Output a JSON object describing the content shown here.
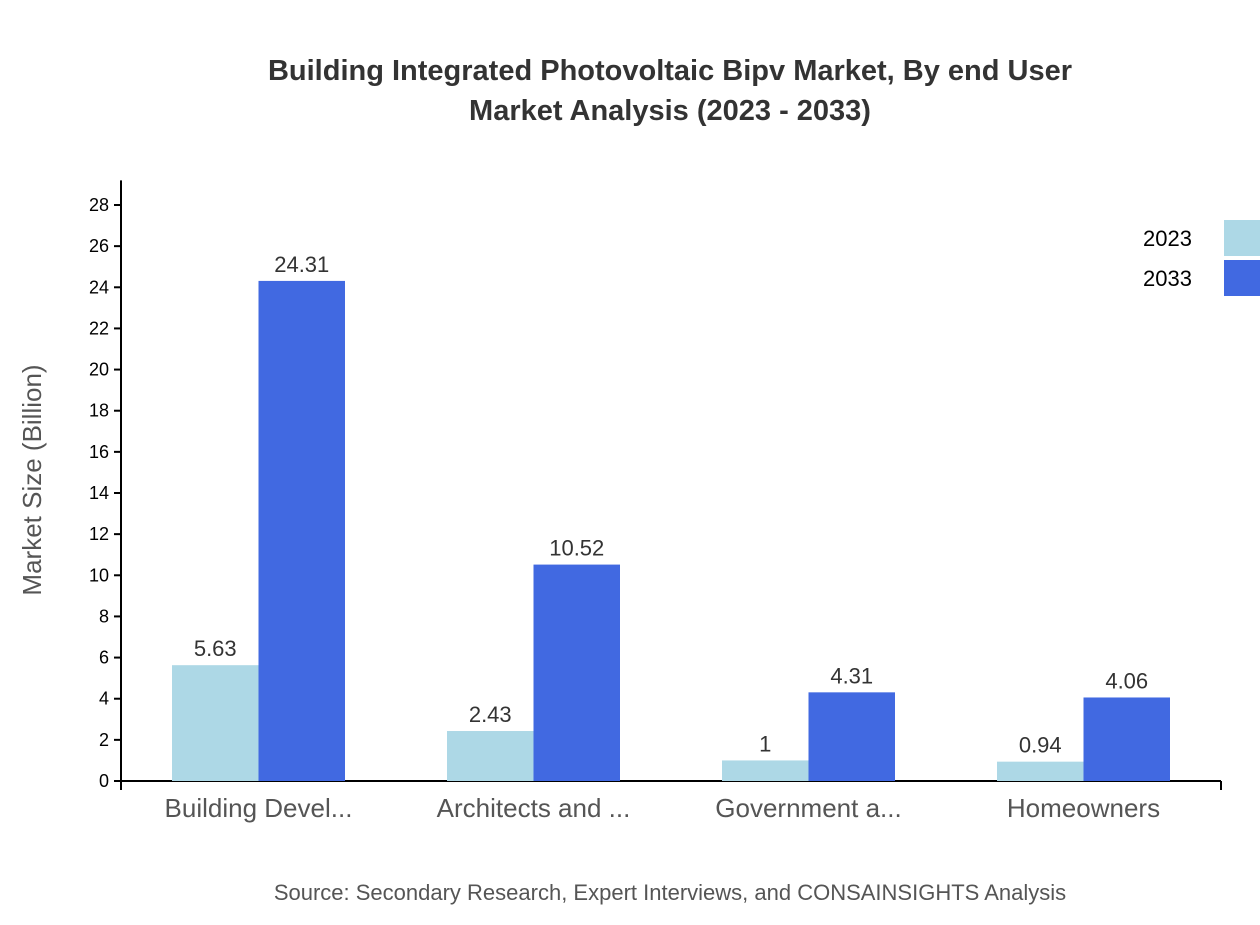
{
  "chart_data": {
    "type": "bar",
    "title": [
      "Building Integrated Photovoltaic Bipv Market, By end User",
      "Market Analysis (2023 - 2033)"
    ],
    "ylabel": "Market Size (Billion)",
    "xlabel": "",
    "categories": [
      "Building Devel...",
      "Architects and ...",
      "Government a...",
      "Homeowners"
    ],
    "series": [
      {
        "name": "2023",
        "color": "#add8e6",
        "values": [
          5.63,
          2.43,
          1,
          0.94
        ]
      },
      {
        "name": "2033",
        "color": "#4169e1",
        "values": [
          24.31,
          10.52,
          4.31,
          4.06
        ]
      }
    ],
    "ylim": [
      0,
      29.2
    ],
    "yticks": [
      0,
      2,
      4,
      6,
      8,
      10,
      12,
      14,
      16,
      18,
      20,
      22,
      24,
      26,
      28
    ],
    "grid": false,
    "legend": "top-right",
    "source": "Source: Secondary Research, Expert Interviews, and CONSAINSIGHTS Analysis"
  }
}
